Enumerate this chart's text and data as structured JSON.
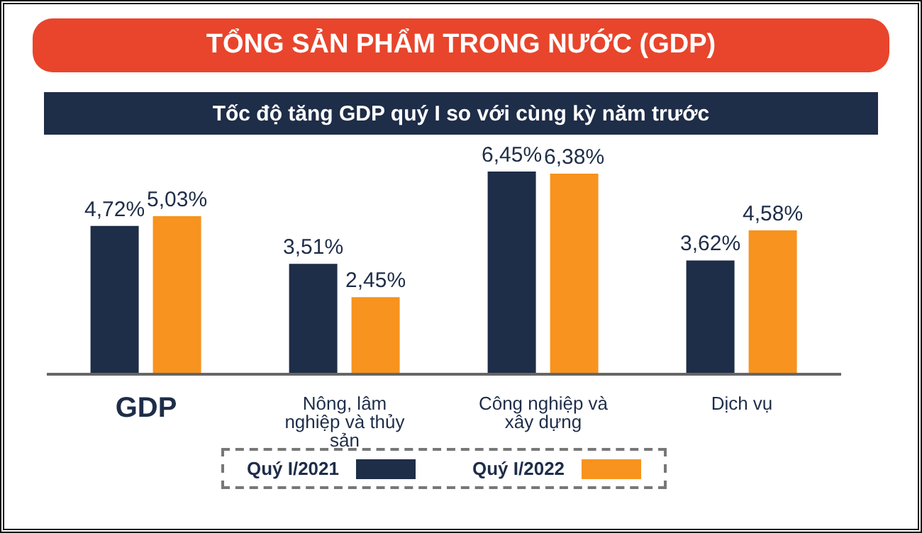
{
  "chart_data": {
    "type": "bar",
    "title": "TỔNG SẢN PHẨM TRONG NƯỚC (GDP)",
    "subtitle": "Tốc độ tăng GDP quý I so với cùng kỳ năm trước",
    "categories": [
      "GDP",
      "Nông, lâm nghiệp và thủy sản",
      "Công nghiệp và xây dựng",
      "Dịch vụ"
    ],
    "series": [
      {
        "name": "Quý I/2021",
        "color": "#1e2d48",
        "values": [
          4.72,
          3.51,
          6.45,
          3.62
        ],
        "value_labels": [
          "4,72%",
          "3,51%",
          "6,45%",
          "3,62%"
        ]
      },
      {
        "name": "Quý I/2022",
        "color": "#f7931e",
        "values": [
          5.03,
          2.45,
          6.38,
          4.58
        ],
        "value_labels": [
          "5,03%",
          "2,45%",
          "6,38%",
          "4,58%"
        ]
      }
    ],
    "legend": "bottom",
    "grid": false,
    "tick_labels": "x"
  }
}
